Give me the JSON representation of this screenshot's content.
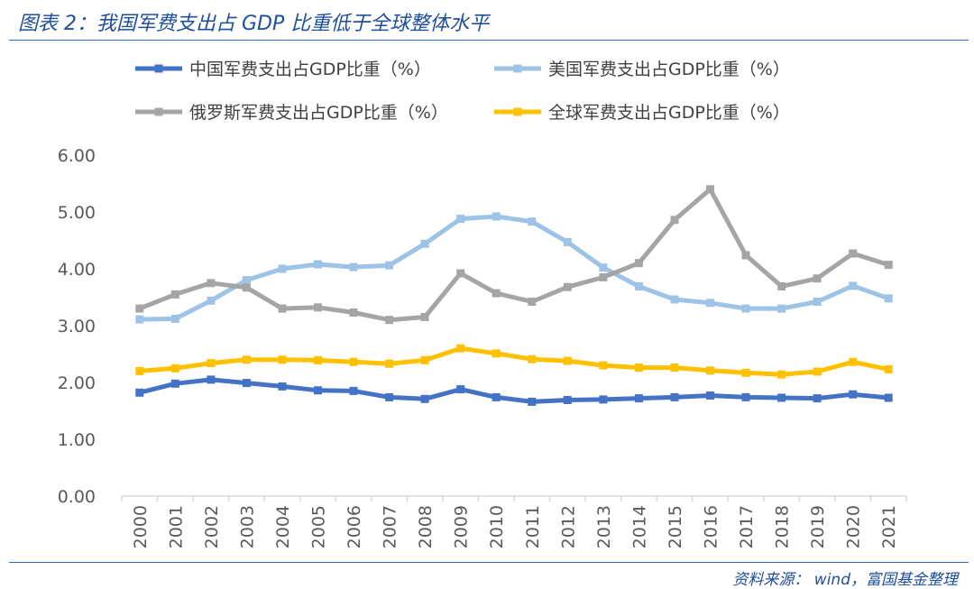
{
  "page": {
    "title": "图表 2：我国军费支出占 GDP 比重低于全球整体水平",
    "source": "资料来源： wind，富国基金整理"
  },
  "chart_data": {
    "type": "line",
    "title": "",
    "xlabel": "",
    "ylabel": "",
    "ylim": [
      0,
      6
    ],
    "yticks": [
      "0.00",
      "1.00",
      "2.00",
      "3.00",
      "4.00",
      "5.00",
      "6.00"
    ],
    "grid": false,
    "legend_position": "top",
    "categories": [
      "2000",
      "2001",
      "2002",
      "2003",
      "2004",
      "2005",
      "2006",
      "2007",
      "2008",
      "2009",
      "2010",
      "2011",
      "2012",
      "2013",
      "2014",
      "2015",
      "2016",
      "2017",
      "2018",
      "2019",
      "2020",
      "2021"
    ],
    "series": [
      {
        "name": "中国军费支出占GDP比重（%）",
        "color": "#4472c4",
        "values": [
          1.82,
          1.98,
          2.05,
          1.99,
          1.93,
          1.86,
          1.85,
          1.74,
          1.71,
          1.88,
          1.74,
          1.66,
          1.69,
          1.7,
          1.72,
          1.74,
          1.77,
          1.74,
          1.73,
          1.72,
          1.79,
          1.73
        ]
      },
      {
        "name": "美国军费支出占GDP比重（%）",
        "color": "#9dc3e6",
        "values": [
          3.11,
          3.12,
          3.44,
          3.8,
          4.0,
          4.08,
          4.03,
          4.06,
          4.44,
          4.88,
          4.92,
          4.83,
          4.47,
          4.02,
          3.69,
          3.46,
          3.4,
          3.3,
          3.3,
          3.42,
          3.7,
          3.48
        ]
      },
      {
        "name": "俄罗斯军费支出占GDP比重（%）",
        "color": "#a5a5a5",
        "values": [
          3.3,
          3.55,
          3.75,
          3.67,
          3.3,
          3.32,
          3.23,
          3.1,
          3.15,
          3.92,
          3.57,
          3.42,
          3.68,
          3.85,
          4.1,
          4.86,
          5.4,
          4.24,
          3.69,
          3.83,
          4.27,
          4.07
        ]
      },
      {
        "name": "全球军费支出占GDP比重（%）",
        "color": "#ffc000",
        "values": [
          2.2,
          2.25,
          2.34,
          2.4,
          2.4,
          2.39,
          2.36,
          2.33,
          2.39,
          2.6,
          2.51,
          2.41,
          2.38,
          2.3,
          2.26,
          2.26,
          2.21,
          2.17,
          2.14,
          2.19,
          2.36,
          2.23
        ]
      }
    ]
  }
}
